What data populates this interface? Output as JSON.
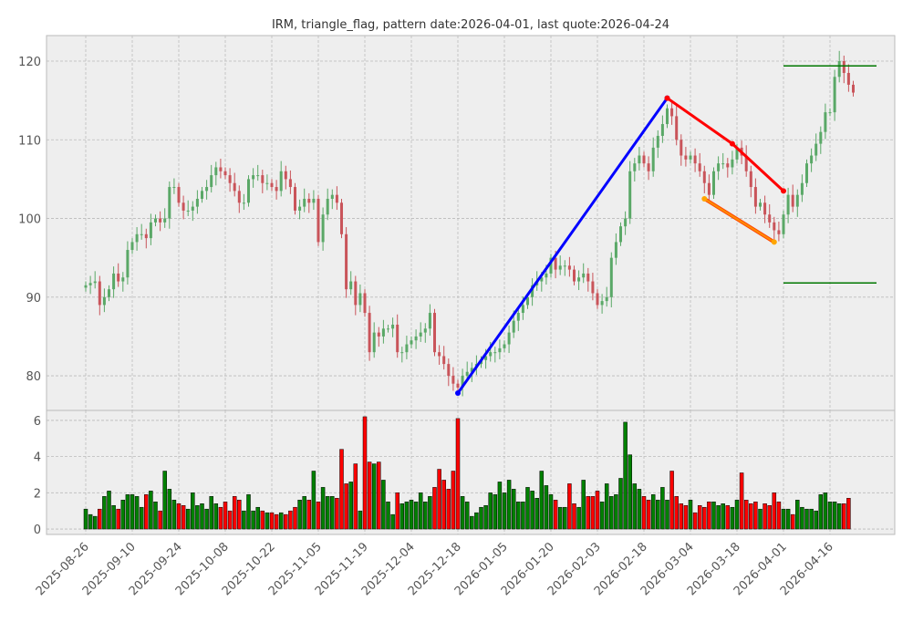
{
  "chart_data": [
    {
      "type": "candlestick",
      "title": "IRM, triangle_flag, pattern date:2026-04-01, last quote:2026-04-24",
      "ylim": [
        75.6,
        123.25
      ],
      "yticks": [
        80,
        90,
        100,
        110,
        120
      ],
      "grid": true,
      "colors": {
        "up": "#5aa867",
        "down": "#c9545a",
        "bg": "#eeeeee",
        "grid": "#bbbbbb"
      },
      "close": [
        91.5,
        91.8,
        92,
        89,
        90,
        91,
        93,
        92,
        92.5,
        96,
        97,
        98,
        98,
        97.5,
        99.5,
        100,
        99.5,
        100,
        104,
        104,
        102,
        101,
        101,
        101.5,
        102.5,
        103.5,
        104,
        105.5,
        106.5,
        106,
        105.5,
        104.5,
        103.5,
        102,
        102,
        105,
        105.5,
        105.5,
        104.5,
        104.5,
        104,
        103.5,
        106,
        105,
        104,
        101,
        101.5,
        102.5,
        102,
        102.5,
        97,
        100.5,
        102.5,
        103,
        102,
        98,
        91,
        92,
        89,
        90.5,
        88,
        83,
        85.5,
        85,
        86,
        86,
        86.5,
        83,
        83,
        84,
        84.5,
        85,
        85.5,
        86,
        88,
        83,
        82.5,
        81.5,
        80,
        79,
        78.5,
        80,
        80.5,
        81,
        81.5,
        82,
        82.5,
        83,
        83,
        83.5,
        84,
        85.5,
        87,
        88,
        89,
        90,
        91.5,
        92,
        92.5,
        93,
        95,
        93.5,
        94,
        94,
        93.5,
        92,
        92.5,
        93,
        92,
        90.5,
        89,
        89.5,
        90,
        95,
        97,
        99,
        100,
        106,
        107,
        108,
        107,
        106,
        109,
        110.5,
        112,
        114,
        113,
        110,
        108,
        107.5,
        108,
        107,
        106,
        104.5,
        103,
        106,
        107,
        107,
        106.5,
        107.5,
        109,
        108,
        106,
        104,
        101.5,
        102,
        100.5,
        99.5,
        98.5,
        98,
        100.5,
        103,
        101.5,
        103,
        104.5,
        107,
        108,
        109.5,
        111,
        113.5,
        113.5,
        118,
        120,
        118.5,
        117,
        116
      ],
      "x_tick_labels": [
        "2025-08-26",
        "2025-09-10",
        "2025-09-24",
        "2025-10-08",
        "2025-10-22",
        "2025-11-05",
        "2025-11-19",
        "2025-12-04",
        "2025-12-18",
        "2026-01-05",
        "2026-01-20",
        "2026-02-03",
        "2026-02-18",
        "2026-03-04",
        "2026-03-18",
        "2026-04-01",
        "2026-04-16"
      ],
      "x_tick_every_bars": 10,
      "pattern_lines": [
        {
          "name": "impulse",
          "color": "#0000ff",
          "points": [
            [
              80,
              77.8
            ],
            [
              125,
              115.3
            ]
          ]
        },
        {
          "name": "upper",
          "color": "#ff0000",
          "points": [
            [
              125,
              115.3
            ],
            [
              139,
              109.5
            ],
            [
              150,
              103.5
            ]
          ]
        },
        {
          "name": "lower",
          "color": "#ff8c00",
          "points": [
            [
              133,
              102.5
            ],
            [
              148,
              97.0
            ]
          ]
        },
        {
          "name": "target-high",
          "color": "#007700",
          "points": [
            [
              150,
              119.4
            ],
            [
              170,
              119.4
            ]
          ],
          "markers": false
        },
        {
          "name": "target-low",
          "color": "#007700",
          "points": [
            [
              150,
              91.8
            ],
            [
              170,
              91.8
            ]
          ],
          "markers": false
        }
      ]
    },
    {
      "type": "bar",
      "name": "volume",
      "ylim": [
        -0.3,
        6.55
      ],
      "yticks": [
        0,
        2,
        4,
        6
      ],
      "values": [
        1.1,
        0.8,
        0.7,
        1.1,
        1.8,
        2.1,
        1.3,
        1.1,
        1.6,
        1.9,
        1.9,
        1.8,
        1.2,
        1.9,
        2.1,
        1.5,
        1.0,
        3.2,
        2.2,
        1.6,
        1.4,
        1.3,
        1.1,
        2.0,
        1.3,
        1.4,
        1.1,
        1.8,
        1.4,
        1.2,
        1.5,
        1.0,
        1.8,
        1.6,
        1.0,
        1.9,
        1.0,
        1.2,
        1.0,
        0.9,
        0.9,
        0.8,
        0.9,
        0.8,
        1.0,
        1.2,
        1.6,
        1.8,
        1.6,
        3.2,
        1.5,
        2.3,
        1.8,
        1.8,
        1.7,
        4.4,
        2.5,
        2.6,
        3.6,
        1.0,
        6.2,
        3.7,
        3.6,
        3.7,
        2.7,
        1.5,
        0.8,
        2.0,
        1.4,
        1.5,
        1.6,
        1.5,
        2.0,
        1.5,
        1.8,
        2.3,
        3.3,
        2.7,
        2.2,
        3.2,
        6.1,
        1.8,
        1.5,
        0.7,
        0.9,
        1.2,
        1.3,
        2.0,
        1.9,
        2.6,
        2.0,
        2.7,
        2.2,
        1.5,
        1.5,
        2.3,
        2.1,
        1.7,
        3.2,
        2.4,
        1.9,
        1.6,
        1.2,
        1.2,
        2.5,
        1.4,
        1.2,
        2.7,
        1.8,
        1.8,
        2.1,
        1.5,
        2.5,
        1.8,
        1.9,
        2.8,
        5.9,
        4.1,
        2.5,
        2.2,
        1.8,
        1.6,
        1.9,
        1.6,
        2.3,
        1.6,
        3.2,
        1.8,
        1.4,
        1.3,
        1.6,
        0.9,
        1.3,
        1.2,
        1.5,
        1.5,
        1.3,
        1.4,
        1.3,
        1.2,
        1.6,
        3.1,
        1.6,
        1.4,
        1.5,
        1.1,
        1.4,
        1.3,
        2.0,
        1.5,
        1.1,
        1.1,
        0.8,
        1.6,
        1.2,
        1.1,
        1.1,
        1.0,
        1.9,
        2.0,
        1.5,
        1.5,
        1.4,
        1.4,
        1.7
      ]
    }
  ]
}
